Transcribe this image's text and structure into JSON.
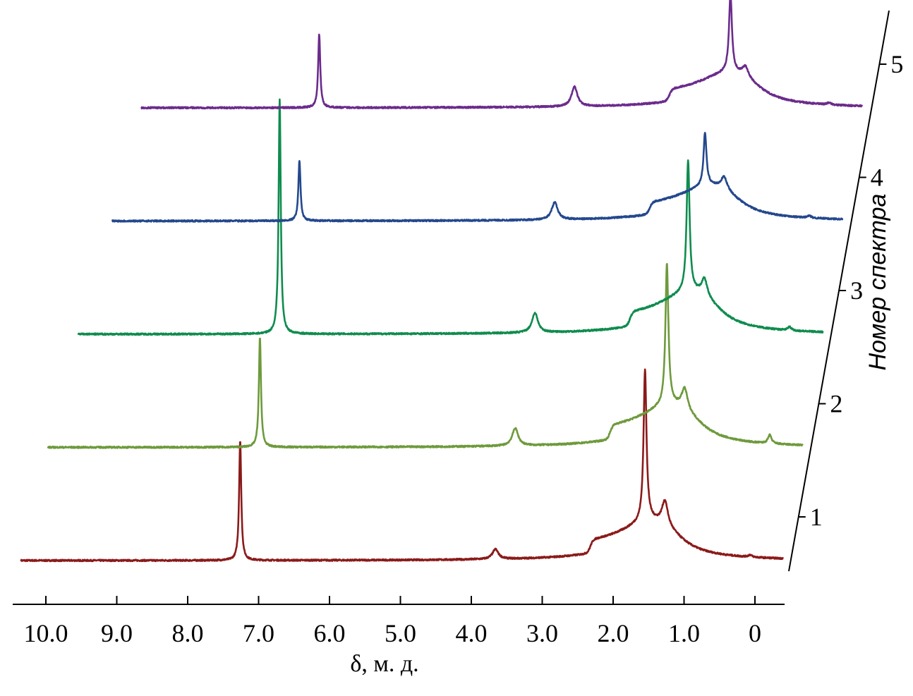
{
  "chart_data": {
    "type": "line",
    "subtype": "stacked-waterfall-nmr",
    "xlabel": "δ, м. д.",
    "zlabel": "Номер спектра",
    "xlim": [
      10.4,
      -0.4
    ],
    "x_reversed": true,
    "x_ticks": [
      10.0,
      9.0,
      8.0,
      7.0,
      6.0,
      5.0,
      4.0,
      3.0,
      2.0,
      1.0,
      0
    ],
    "x_tick_labels": [
      "10.0",
      "9.0",
      "8.0",
      "7.0",
      "6.0",
      "5.0",
      "4.0",
      "3.0",
      "2.0",
      "1.0",
      "0"
    ],
    "z_tick_labels": [
      "1",
      "2",
      "3",
      "4",
      "5"
    ],
    "grid": false,
    "legend": "none",
    "series": [
      {
        "label": "1",
        "color": "#8b1a1a",
        "x_range": [
          10.35,
          -0.4
        ],
        "hump": 42,
        "peaks": [
          {
            "ppm": 7.26,
            "height": 170
          },
          {
            "ppm": 3.66,
            "height": 14
          },
          {
            "ppm": 1.55,
            "height": 215
          },
          {
            "ppm": 1.27,
            "height": 35
          },
          {
            "ppm": 0.07,
            "height": 3
          }
        ]
      },
      {
        "label": "2",
        "color": "#6e9a3c",
        "x_range": [
          10.25,
          -0.4
        ],
        "hump": 45,
        "peaks": [
          {
            "ppm": 7.26,
            "height": 155
          },
          {
            "ppm": 3.66,
            "height": 25
          },
          {
            "ppm": 1.52,
            "height": 200
          },
          {
            "ppm": 1.27,
            "height": 30
          },
          {
            "ppm": 0.07,
            "height": 12
          }
        ]
      },
      {
        "label": "3",
        "color": "#0f8c4e",
        "x_range": [
          10.1,
          -0.4
        ],
        "hump": 45,
        "peaks": [
          {
            "ppm": 7.26,
            "height": 333
          },
          {
            "ppm": 3.66,
            "height": 28
          },
          {
            "ppm": 1.5,
            "height": 185
          },
          {
            "ppm": 1.27,
            "height": 25
          },
          {
            "ppm": 0.07,
            "height": 5
          }
        ]
      },
      {
        "label": "4",
        "color": "#24488e",
        "x_range": [
          9.9,
          -0.4
        ],
        "hump": 38,
        "peaks": [
          {
            "ppm": 7.26,
            "height": 86
          },
          {
            "ppm": 3.66,
            "height": 25
          },
          {
            "ppm": 1.54,
            "height": 75
          },
          {
            "ppm": 1.27,
            "height": 18
          },
          {
            "ppm": 0.07,
            "height": 3
          }
        ]
      },
      {
        "label": "5",
        "color": "#6b2b8c",
        "x_range": [
          9.77,
          -0.4
        ],
        "hump": 38,
        "peaks": [
          {
            "ppm": 7.26,
            "height": 104
          },
          {
            "ppm": 3.66,
            "height": 28
          },
          {
            "ppm": 1.46,
            "height": 110
          },
          {
            "ppm": 1.25,
            "height": 15
          },
          {
            "ppm": 0.07,
            "height": 3
          }
        ]
      }
    ]
  }
}
